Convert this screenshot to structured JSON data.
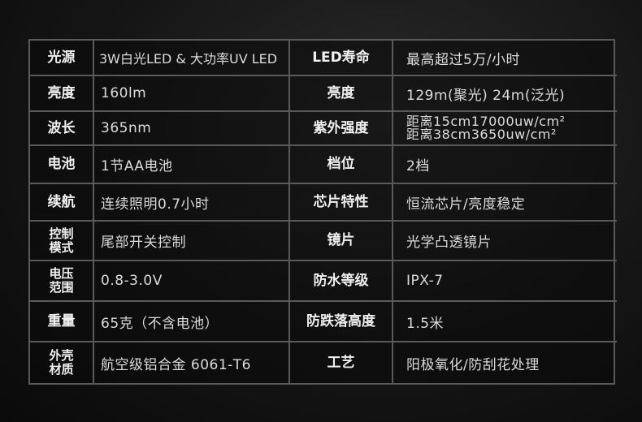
{
  "rows": [
    {
      "l1": "光源",
      "v1": "3W白光LED & 大功率UV LED",
      "l2": "LED寿命",
      "v2": "最高超过5万/小时"
    },
    {
      "l1": "亮度",
      "v1": "160lm",
      "l2": "亮度",
      "v2": "129m(聚光)  24m(泛光)"
    },
    {
      "l1": "波长",
      "v1": "365nm",
      "l2": "紫外强度",
      "v2a": "距离15cm17000uw/cm²",
      "v2b": "距离38cm3650uw/cm²"
    },
    {
      "l1": "电池",
      "v1": "1节AA电池",
      "l2": "档位",
      "v2": "2档"
    },
    {
      "l1": "续航",
      "v1": "连续照明0.7小时",
      "l2": "芯片特性",
      "v2": "恒流芯片/亮度稳定"
    },
    {
      "l1a": "控制",
      "l1b": "模式",
      "v1": "尾部开关控制",
      "l2": "镜片",
      "v2": "光学凸透镜片"
    },
    {
      "l1a": "电压",
      "l1b": "范围",
      "v1": "0.8-3.0V",
      "l2": "防水等级",
      "v2": "IPX-7"
    },
    {
      "l1": "重量",
      "v1": "65克（不含电池）",
      "l2": "防跌落高度",
      "v2": "1.5米"
    },
    {
      "l1a": "外壳",
      "l1b": "材质",
      "v1": "航空级铝合金 6061-T6",
      "l2": "工艺",
      "v2": "阳极氧化/防刮花处理"
    }
  ]
}
